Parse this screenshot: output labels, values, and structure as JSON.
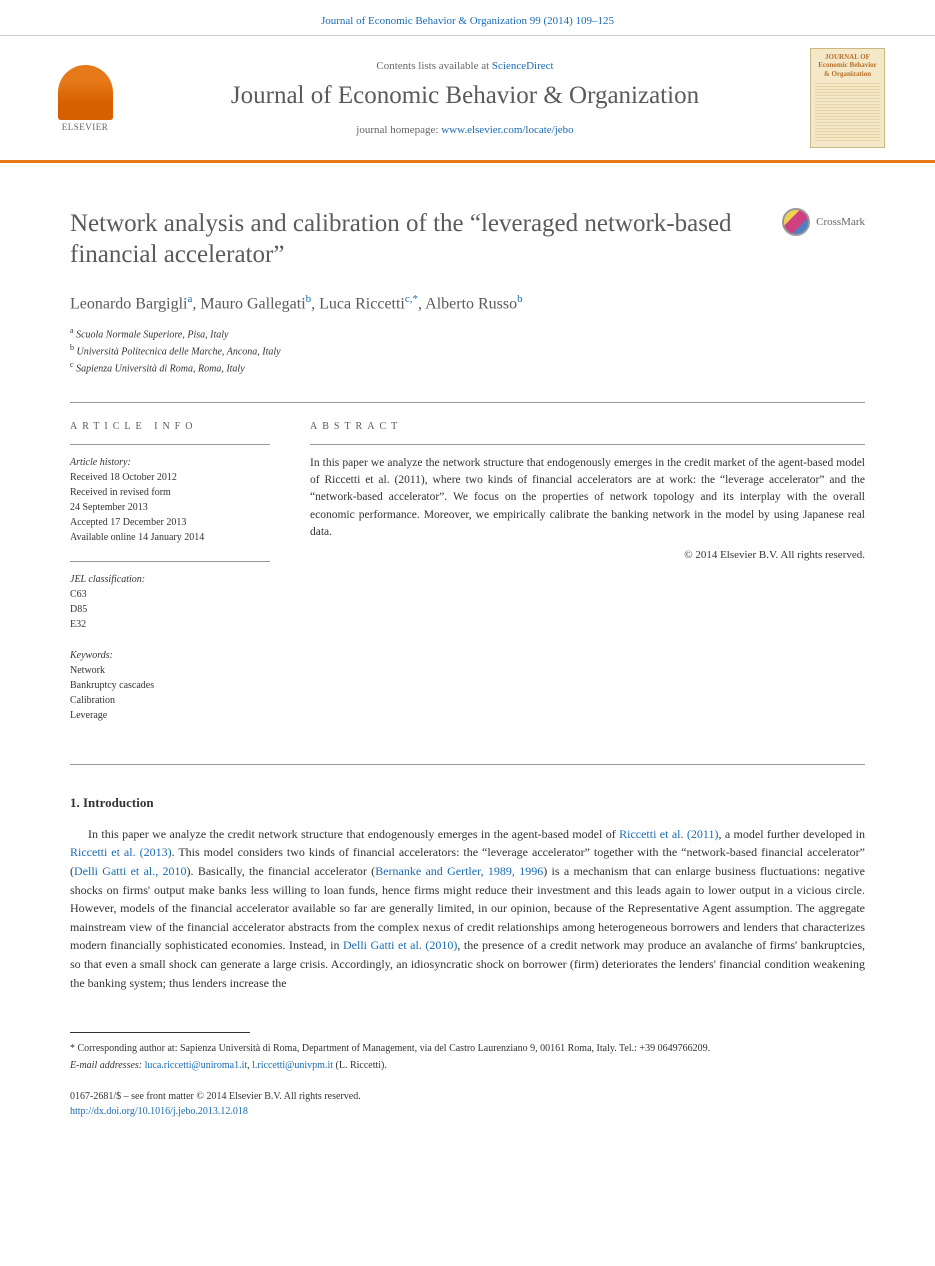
{
  "header": {
    "citation_text": "Journal of Economic Behavior & Organization 99 (2014) 109–125",
    "contents_prefix": "Contents lists available at ",
    "contents_link": "ScienceDirect",
    "journal_name": "Journal of Economic Behavior & Organization",
    "homepage_prefix": "journal homepage: ",
    "homepage_url": "www.elsevier.com/locate/jebo",
    "elsevier_label": "ELSEVIER",
    "cover_title": "JOURNAL OF Economic Behavior & Organization"
  },
  "article": {
    "title": "Network analysis and calibration of the “leveraged network-based financial accelerator”",
    "crossmark_label": "CrossMark",
    "authors_html": "Leonardo Bargigli|a|, Mauro Gallegati|b|, Luca Riccetti|c,*|, Alberto Russo|b|",
    "affiliations": [
      "a Scuola Normale Superiore, Pisa, Italy",
      "b Università Politecnica delle Marche, Ancona, Italy",
      "c Sapienza Università di Roma, Roma, Italy"
    ]
  },
  "info": {
    "label": "ARTICLE INFO",
    "history_heading": "Article history:",
    "history_lines": [
      "Received 18 October 2012",
      "Received in revised form",
      "24 September 2013",
      "Accepted 17 December 2013",
      "Available online 14 January 2014"
    ],
    "jel_heading": "JEL classification:",
    "jel_codes": [
      "C63",
      "D85",
      "E32"
    ],
    "keywords_heading": "Keywords:",
    "keywords": [
      "Network",
      "Bankruptcy cascades",
      "Calibration",
      "Leverage"
    ]
  },
  "abstract": {
    "label": "ABSTRACT",
    "text": "In this paper we analyze the network structure that endogenously emerges in the credit market of the agent-based model of Riccetti et al. (2011), where two kinds of financial accelerators are at work: the “leverage accelerator” and the “network-based accelerator”. We focus on the properties of network topology and its interplay with the overall economic performance. Moreover, we empirically calibrate the banking network in the model by using Japanese real data.",
    "copyright": "© 2014 Elsevier B.V. All rights reserved."
  },
  "body": {
    "section1_heading": "1.  Introduction",
    "para1_parts": {
      "p0": "In this paper we analyze the credit network structure that endogenously emerges in the agent-based model of ",
      "c1": "Riccetti et al. (2011)",
      "p1": ", a model further developed in ",
      "c2": "Riccetti et al. (2013)",
      "p2": ". This model considers two kinds of financial accelerators: the “leverage accelerator” together with the “network-based financial accelerator” (",
      "c3": "Delli Gatti et al., 2010",
      "p3": "). Basically, the financial accelerator (",
      "c4": "Bernanke and Gertler, 1989, 1996",
      "p4": ") is a mechanism that can enlarge business fluctuations: negative shocks on firms' output make banks less willing to loan funds, hence firms might reduce their investment and this leads again to lower output in a vicious circle. However, models of the financial accelerator available so far are generally limited, in our opinion, because of the Representative Agent assumption. The aggregate mainstream view of the financial accelerator abstracts from the complex nexus of credit relationships among heterogeneous borrowers and lenders that characterizes modern financially sophisticated economies. Instead, in ",
      "c5": "Delli Gatti et al. (2010)",
      "p5": ", the presence of a credit network may produce an avalanche of firms' bankruptcies, so that even a small shock can generate a large crisis. Accordingly, an idiosyncratic shock on borrower (firm) deteriorates the lenders' financial condition weakening the banking system; thus lenders increase the"
    }
  },
  "footnotes": {
    "corresponding": "* Corresponding author at: Sapienza Università di Roma, Department of Management, via del Castro Laurenziano 9, 00161 Roma, Italy. Tel.: +39 0649766209.",
    "email_label": "E-mail addresses: ",
    "email1": "luca.riccetti@uniroma1.it",
    "email_sep": ", ",
    "email2": "l.riccetti@univpm.it",
    "email_tail": " (L. Riccetti)."
  },
  "footer": {
    "issn_line": "0167-2681/$ – see front matter © 2014 Elsevier B.V. All rights reserved.",
    "doi": "http://dx.doi.org/10.1016/j.jebo.2013.12.018"
  },
  "colors": {
    "link": "#1a6bb3",
    "accent": "#e67817",
    "text_gray": "#5a5a5a"
  }
}
